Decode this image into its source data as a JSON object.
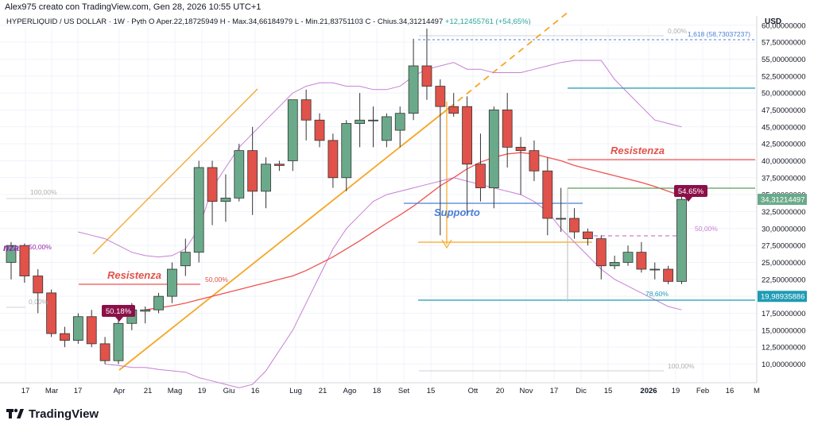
{
  "topbar": {
    "text": "Alex975 creato con TradingView.com, Gen 28, 2026 10:55 UTC+1"
  },
  "header": {
    "symbol": "HYPERLIQUID / US DOLLAR · 1W · Pyth",
    "open_label": "O",
    "open": "Aper.22,18725949",
    "high": "H - Max.34,66184979",
    "low": "L - Min.21,83751103",
    "close": "C - Chius.34,31214497",
    "change": "+12,12455761 (+54,65%)"
  },
  "currency": "USD",
  "footer": {
    "brand": "TradingView"
  },
  "colors": {
    "up": "#6aaa8a",
    "down": "#e0524a",
    "ma": "#ef5350",
    "bb": "#c77fd4",
    "orange": "#f5a623",
    "blue": "#4a7fd6",
    "teal": "#1f9bb5",
    "green": "#5a9e5a",
    "purple": "#9c27b0"
  },
  "chart_data": {
    "type": "candlestick",
    "x_labels": [
      "17",
      "Mar",
      "17",
      "Apr",
      "21",
      "Mag",
      "19",
      "Giu",
      "16",
      "Lug",
      "21",
      "Ago",
      "18",
      "Set",
      "15",
      "Ott",
      "20",
      "Nov",
      "17",
      "Dic",
      "15",
      "2026",
      "19",
      "Feb",
      "16",
      "M"
    ],
    "y_ticks": [
      "60,00000000",
      "57,50000000",
      "55,00000000",
      "52,50000000",
      "50,00000000",
      "47,50000000",
      "45,00000000",
      "42,50000000",
      "40,00000000",
      "37,50000000",
      "35,00000000",
      "32,50000000",
      "30,00000000",
      "27,50000000",
      "25,00000000",
      "22,50000000",
      "20,00000000",
      "17,50000000",
      "15,00000000",
      "12,50000000",
      "10,00000000"
    ],
    "y_tick_values": [
      60,
      57.5,
      55,
      52.5,
      50,
      47.5,
      45,
      42.5,
      40,
      37.5,
      35,
      32.5,
      30,
      27.5,
      25,
      22.5,
      20,
      17.5,
      15,
      12.5,
      10
    ],
    "price_labels": [
      {
        "value": 34.31214497,
        "text": "34,31214497",
        "color": "#6aaa8a"
      },
      {
        "value": 19.98935886,
        "text": "19,98935886",
        "color": "#1f9bb5"
      }
    ],
    "candles": [
      {
        "o": 25.0,
        "h": 28.0,
        "l": 22.5,
        "c": 27.5
      },
      {
        "o": 27.5,
        "h": 27.8,
        "l": 22.0,
        "c": 23.0
      },
      {
        "o": 23.0,
        "h": 24.0,
        "l": 17.5,
        "c": 20.5
      },
      {
        "o": 20.5,
        "h": 21.0,
        "l": 14.0,
        "c": 14.5
      },
      {
        "o": 14.5,
        "h": 15.5,
        "l": 12.5,
        "c": 13.5
      },
      {
        "o": 13.5,
        "h": 17.5,
        "l": 13.0,
        "c": 17.0
      },
      {
        "o": 17.0,
        "h": 18.0,
        "l": 12.5,
        "c": 13.0
      },
      {
        "o": 13.0,
        "h": 14.0,
        "l": 10.0,
        "c": 10.5
      },
      {
        "o": 10.5,
        "h": 17.0,
        "l": 10.0,
        "c": 16.0
      },
      {
        "o": 16.0,
        "h": 19.0,
        "l": 15.0,
        "c": 18.0
      },
      {
        "o": 17.8,
        "h": 18.5,
        "l": 16.0,
        "c": 18.0
      },
      {
        "o": 18.0,
        "h": 20.5,
        "l": 17.5,
        "c": 20.0
      },
      {
        "o": 20.0,
        "h": 25.0,
        "l": 19.0,
        "c": 24.0
      },
      {
        "o": 24.5,
        "h": 28.5,
        "l": 23.0,
        "c": 26.5
      },
      {
        "o": 26.5,
        "h": 40.0,
        "l": 25.0,
        "c": 39.0
      },
      {
        "o": 39.0,
        "h": 40.0,
        "l": 30.5,
        "c": 34.0
      },
      {
        "o": 34.0,
        "h": 38.0,
        "l": 31.0,
        "c": 34.5
      },
      {
        "o": 34.5,
        "h": 42.5,
        "l": 34.0,
        "c": 41.5
      },
      {
        "o": 41.5,
        "h": 45.0,
        "l": 32.0,
        "c": 35.5
      },
      {
        "o": 35.5,
        "h": 40.5,
        "l": 33.0,
        "c": 39.5
      },
      {
        "o": 39.5,
        "h": 40.0,
        "l": 38.5,
        "c": 39.3
      },
      {
        "o": 40.0,
        "h": 49.0,
        "l": 38.5,
        "c": 49.0
      },
      {
        "o": 49.0,
        "h": 50.5,
        "l": 43.0,
        "c": 46.0
      },
      {
        "o": 46.0,
        "h": 47.0,
        "l": 42.0,
        "c": 43.0
      },
      {
        "o": 43.0,
        "h": 44.0,
        "l": 36.0,
        "c": 37.5
      },
      {
        "o": 37.5,
        "h": 46.0,
        "l": 35.5,
        "c": 45.5
      },
      {
        "o": 45.5,
        "h": 50.0,
        "l": 42.0,
        "c": 46.0
      },
      {
        "o": 46.0,
        "h": 48.0,
        "l": 42.0,
        "c": 46.0
      },
      {
        "o": 43.0,
        "h": 47.0,
        "l": 42.0,
        "c": 46.5
      },
      {
        "o": 44.5,
        "h": 48.0,
        "l": 42.0,
        "c": 47.0
      },
      {
        "o": 47.0,
        "h": 58.0,
        "l": 46.0,
        "c": 54.0
      },
      {
        "o": 54.0,
        "h": 59.5,
        "l": 49.0,
        "c": 51.0
      },
      {
        "o": 51.0,
        "h": 52.0,
        "l": 29.0,
        "c": 48.0
      },
      {
        "o": 48.0,
        "h": 50.0,
        "l": 46.5,
        "c": 47.0
      },
      {
        "o": 48.0,
        "h": 49.5,
        "l": 32.0,
        "c": 39.5
      },
      {
        "o": 39.5,
        "h": 44.0,
        "l": 34.0,
        "c": 36.0
      },
      {
        "o": 36.0,
        "h": 48.0,
        "l": 33.0,
        "c": 47.5
      },
      {
        "o": 47.5,
        "h": 50.0,
        "l": 39.0,
        "c": 42.0
      },
      {
        "o": 42.0,
        "h": 43.5,
        "l": 35.0,
        "c": 41.5
      },
      {
        "o": 41.5,
        "h": 43.0,
        "l": 37.0,
        "c": 38.5
      },
      {
        "o": 38.5,
        "h": 40.5,
        "l": 29.0,
        "c": 31.5
      },
      {
        "o": 31.5,
        "h": 36.0,
        "l": 29.5,
        "c": 31.5
      },
      {
        "o": 31.5,
        "h": 33.0,
        "l": 28.5,
        "c": 29.5
      },
      {
        "o": 29.5,
        "h": 30.0,
        "l": 27.5,
        "c": 28.5
      },
      {
        "o": 28.5,
        "h": 29.0,
        "l": 22.5,
        "c": 24.5
      },
      {
        "o": 24.5,
        "h": 26.0,
        "l": 24.0,
        "c": 25.0
      },
      {
        "o": 25.0,
        "h": 27.5,
        "l": 24.5,
        "c": 26.5
      },
      {
        "o": 26.5,
        "h": 28.0,
        "l": 23.5,
        "c": 24.0
      },
      {
        "o": 24.0,
        "h": 25.0,
        "l": 22.5,
        "c": 24.0
      },
      {
        "o": 24.0,
        "h": 24.5,
        "l": 21.8,
        "c": 22.2
      },
      {
        "o": 22.2,
        "h": 34.7,
        "l": 21.8,
        "c": 34.3
      }
    ],
    "moving_average": [
      null,
      null,
      null,
      null,
      null,
      null,
      null,
      null,
      null,
      null,
      18.0,
      18.3,
      18.6,
      19.0,
      19.5,
      20.0,
      20.5,
      21.0,
      21.5,
      22.0,
      22.5,
      23.0,
      23.8,
      24.8,
      25.8,
      27.0,
      28.2,
      29.5,
      30.8,
      32.0,
      33.3,
      34.8,
      36.3,
      37.5,
      38.8,
      39.8,
      40.5,
      41.0,
      41.2,
      41.0,
      40.5,
      40.0,
      39.3,
      38.8,
      38.3,
      37.8,
      37.3,
      36.8,
      36.2,
      35.5,
      34.8
    ],
    "bollinger_upper": [
      null,
      null,
      null,
      null,
      null,
      29.5,
      29.0,
      28.5,
      27.5,
      26.5,
      26.0,
      25.8,
      26.0,
      27.0,
      30.0,
      36.0,
      39.0,
      42.0,
      44.0,
      46.0,
      48.0,
      50.0,
      51.0,
      51.5,
      51.5,
      51.0,
      51.0,
      50.5,
      50.5,
      51.0,
      52.5,
      53.5,
      54.0,
      54.5,
      53.5,
      53.5,
      53.0,
      53.0,
      53.0,
      53.5,
      54.0,
      54.5,
      54.8,
      54.8,
      54.8,
      52.0,
      50.0,
      48.0,
      46.0,
      45.5,
      45.0
    ],
    "bollinger_lower": [
      null,
      null,
      null,
      null,
      null,
      null,
      null,
      10.0,
      9.8,
      9.5,
      9.5,
      9.2,
      9.0,
      8.8,
      8.0,
      7.5,
      7.0,
      6.5,
      7.0,
      9.0,
      12.0,
      15.0,
      19.0,
      23.0,
      27.0,
      30.0,
      32.0,
      34.0,
      35.0,
      35.5,
      36.0,
      36.5,
      37.0,
      37.5,
      37.0,
      36.5,
      36.0,
      35.5,
      35.0,
      34.0,
      32.5,
      30.0,
      28.0,
      26.0,
      24.0,
      22.5,
      21.5,
      20.5,
      19.5,
      18.5,
      18.0
    ],
    "annotations": [
      {
        "text": "Resistenza",
        "color": "#e0524a"
      },
      {
        "text": "Resistenza",
        "color": "#e0524a"
      },
      {
        "text": "Supporto",
        "color": "#4a7fd6"
      },
      {
        "text": "nza",
        "color": "#9c27b0"
      },
      {
        "text": "50,00%",
        "color": "#9c27b0"
      },
      {
        "text": "50,00%",
        "color": "#e0524a"
      },
      {
        "text": "100,00%",
        "color": "#b0b0b0"
      },
      {
        "text": "0,00%",
        "color": "#b0b0b0"
      },
      {
        "text": "0,00%",
        "color": "#b0b0b0"
      },
      {
        "text": "100,00%",
        "color": "#b0b0b0"
      },
      {
        "text": "1,618 (58,73037237)",
        "color": "#4a7fd6"
      },
      {
        "text": "50,00%",
        "color": "#c77fd4"
      },
      {
        "text": "78,60%",
        "color": "#1f9bb5"
      }
    ],
    "badges": [
      {
        "text": "50.18%",
        "color": "#8b1048"
      },
      {
        "text": "54.65%",
        "color": "#8b1048"
      }
    ]
  }
}
